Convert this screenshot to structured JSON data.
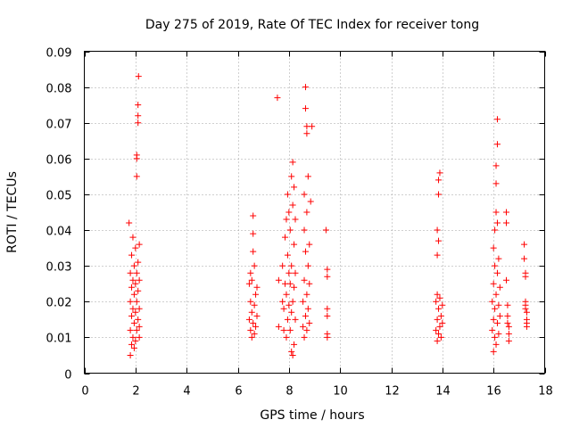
{
  "chart_data": {
    "type": "scatter",
    "title": "Day 275 of 2019, Rate Of TEC Index for receiver tong",
    "xlabel": "GPS time / hours",
    "ylabel": "ROTI / TECUs",
    "xlim": [
      0,
      18
    ],
    "ylim": [
      0,
      0.09
    ],
    "xticks": [
      0,
      2,
      4,
      6,
      8,
      10,
      12,
      14,
      16,
      18
    ],
    "yticks": [
      0,
      0.01,
      0.02,
      0.03,
      0.04,
      0.05,
      0.06,
      0.07,
      0.08,
      0.09
    ],
    "xtick_labels": [
      "0",
      "2",
      "4",
      "6",
      "8",
      "10",
      "12",
      "14",
      "16",
      "18"
    ],
    "ytick_labels": [
      "0",
      "0.01",
      "0.02",
      "0.03",
      "0.04",
      "0.05",
      "0.06",
      "0.07",
      "0.08",
      "0.09"
    ],
    "grid": true,
    "marker": "+",
    "series": [
      {
        "name": "ROTI",
        "color": "#ff0000",
        "points": [
          [
            1.75,
            0.042
          ],
          [
            1.8,
            0.005
          ],
          [
            1.8,
            0.012
          ],
          [
            1.8,
            0.02
          ],
          [
            1.8,
            0.028
          ],
          [
            1.85,
            0.008
          ],
          [
            1.85,
            0.016
          ],
          [
            1.85,
            0.024
          ],
          [
            1.85,
            0.033
          ],
          [
            1.9,
            0.01
          ],
          [
            1.9,
            0.018
          ],
          [
            1.9,
            0.026
          ],
          [
            1.9,
            0.038
          ],
          [
            1.95,
            0.007
          ],
          [
            1.95,
            0.014
          ],
          [
            1.95,
            0.022
          ],
          [
            1.95,
            0.03
          ],
          [
            2.0,
            0.009
          ],
          [
            2.0,
            0.017
          ],
          [
            2.0,
            0.025
          ],
          [
            2.0,
            0.035
          ],
          [
            2.05,
            0.055
          ],
          [
            2.05,
            0.06
          ],
          [
            2.05,
            0.061
          ],
          [
            2.05,
            0.012
          ],
          [
            2.05,
            0.02
          ],
          [
            2.05,
            0.028
          ],
          [
            2.1,
            0.07
          ],
          [
            2.1,
            0.072
          ],
          [
            2.1,
            0.075
          ],
          [
            2.1,
            0.015
          ],
          [
            2.1,
            0.023
          ],
          [
            2.1,
            0.031
          ],
          [
            2.12,
            0.083
          ],
          [
            2.15,
            0.01
          ],
          [
            2.15,
            0.018
          ],
          [
            2.15,
            0.026
          ],
          [
            2.15,
            0.036
          ],
          [
            2.15,
            0.013
          ],
          [
            6.45,
            0.015
          ],
          [
            6.45,
            0.025
          ],
          [
            6.5,
            0.012
          ],
          [
            6.5,
            0.02
          ],
          [
            6.5,
            0.028
          ],
          [
            6.55,
            0.01
          ],
          [
            6.55,
            0.017
          ],
          [
            6.55,
            0.026
          ],
          [
            6.6,
            0.044
          ],
          [
            6.6,
            0.039
          ],
          [
            6.6,
            0.034
          ],
          [
            6.6,
            0.014
          ],
          [
            6.65,
            0.011
          ],
          [
            6.65,
            0.019
          ],
          [
            6.65,
            0.03
          ],
          [
            6.7,
            0.013
          ],
          [
            6.7,
            0.022
          ],
          [
            6.75,
            0.016
          ],
          [
            6.75,
            0.024
          ],
          [
            7.55,
            0.077
          ],
          [
            7.6,
            0.026
          ],
          [
            7.6,
            0.013
          ],
          [
            7.75,
            0.02
          ],
          [
            7.75,
            0.03
          ],
          [
            7.8,
            0.012
          ],
          [
            7.8,
            0.018
          ],
          [
            7.85,
            0.025
          ],
          [
            7.85,
            0.038
          ],
          [
            7.9,
            0.01
          ],
          [
            7.9,
            0.022
          ],
          [
            7.9,
            0.043
          ],
          [
            7.95,
            0.015
          ],
          [
            7.95,
            0.033
          ],
          [
            7.95,
            0.05
          ],
          [
            8.0,
            0.019
          ],
          [
            8.0,
            0.028
          ],
          [
            8.0,
            0.045
          ],
          [
            8.05,
            0.012
          ],
          [
            8.05,
            0.025
          ],
          [
            8.05,
            0.04
          ],
          [
            8.1,
            0.006
          ],
          [
            8.1,
            0.017
          ],
          [
            8.1,
            0.03
          ],
          [
            8.1,
            0.055
          ],
          [
            8.15,
            0.005
          ],
          [
            8.15,
            0.02
          ],
          [
            8.15,
            0.047
          ],
          [
            8.15,
            0.059
          ],
          [
            8.2,
            0.008
          ],
          [
            8.2,
            0.024
          ],
          [
            8.2,
            0.036
          ],
          [
            8.2,
            0.052
          ],
          [
            8.25,
            0.015
          ],
          [
            8.25,
            0.028
          ],
          [
            8.25,
            0.043
          ],
          [
            8.55,
            0.013
          ],
          [
            8.55,
            0.02
          ],
          [
            8.6,
            0.01
          ],
          [
            8.6,
            0.026
          ],
          [
            8.6,
            0.04
          ],
          [
            8.6,
            0.05
          ],
          [
            8.65,
            0.074
          ],
          [
            8.65,
            0.08
          ],
          [
            8.65,
            0.016
          ],
          [
            8.65,
            0.034
          ],
          [
            8.7,
            0.067
          ],
          [
            8.7,
            0.069
          ],
          [
            8.7,
            0.012
          ],
          [
            8.7,
            0.022
          ],
          [
            8.7,
            0.045
          ],
          [
            8.75,
            0.018
          ],
          [
            8.75,
            0.03
          ],
          [
            8.75,
            0.055
          ],
          [
            8.8,
            0.014
          ],
          [
            8.8,
            0.025
          ],
          [
            8.8,
            0.036
          ],
          [
            8.85,
            0.048
          ],
          [
            8.9,
            0.069
          ],
          [
            9.45,
            0.04
          ],
          [
            9.5,
            0.029
          ],
          [
            9.5,
            0.027
          ],
          [
            9.5,
            0.018
          ],
          [
            9.5,
            0.016
          ],
          [
            9.5,
            0.011
          ],
          [
            9.5,
            0.01
          ],
          [
            13.75,
            0.012
          ],
          [
            13.75,
            0.02
          ],
          [
            13.8,
            0.009
          ],
          [
            13.8,
            0.015
          ],
          [
            13.8,
            0.022
          ],
          [
            13.8,
            0.033
          ],
          [
            13.8,
            0.04
          ],
          [
            13.85,
            0.05
          ],
          [
            13.85,
            0.054
          ],
          [
            13.85,
            0.011
          ],
          [
            13.85,
            0.018
          ],
          [
            13.85,
            0.037
          ],
          [
            13.9,
            0.056
          ],
          [
            13.9,
            0.013
          ],
          [
            13.9,
            0.021
          ],
          [
            13.95,
            0.01
          ],
          [
            13.95,
            0.016
          ],
          [
            14.0,
            0.014
          ],
          [
            14.0,
            0.019
          ],
          [
            15.95,
            0.012
          ],
          [
            15.95,
            0.02
          ],
          [
            16.0,
            0.006
          ],
          [
            16.0,
            0.015
          ],
          [
            16.0,
            0.025
          ],
          [
            16.0,
            0.035
          ],
          [
            16.05,
            0.01
          ],
          [
            16.05,
            0.018
          ],
          [
            16.05,
            0.03
          ],
          [
            16.05,
            0.04
          ],
          [
            16.1,
            0.045
          ],
          [
            16.1,
            0.053
          ],
          [
            16.1,
            0.058
          ],
          [
            16.1,
            0.008
          ],
          [
            16.1,
            0.022
          ],
          [
            16.15,
            0.064
          ],
          [
            16.15,
            0.071
          ],
          [
            16.15,
            0.014
          ],
          [
            16.15,
            0.028
          ],
          [
            16.15,
            0.042
          ],
          [
            16.2,
            0.011
          ],
          [
            16.2,
            0.019
          ],
          [
            16.2,
            0.032
          ],
          [
            16.25,
            0.016
          ],
          [
            16.25,
            0.024
          ],
          [
            16.5,
            0.045
          ],
          [
            16.5,
            0.042
          ],
          [
            16.5,
            0.026
          ],
          [
            16.55,
            0.019
          ],
          [
            16.55,
            0.016
          ],
          [
            16.55,
            0.014
          ],
          [
            16.6,
            0.013
          ],
          [
            16.6,
            0.011
          ],
          [
            16.6,
            0.009
          ],
          [
            17.2,
            0.036
          ],
          [
            17.2,
            0.032
          ],
          [
            17.25,
            0.028
          ],
          [
            17.25,
            0.027
          ],
          [
            17.25,
            0.02
          ],
          [
            17.25,
            0.019
          ],
          [
            17.25,
            0.018
          ],
          [
            17.3,
            0.017
          ],
          [
            17.3,
            0.015
          ],
          [
            17.3,
            0.014
          ],
          [
            17.3,
            0.013
          ]
        ]
      }
    ]
  }
}
